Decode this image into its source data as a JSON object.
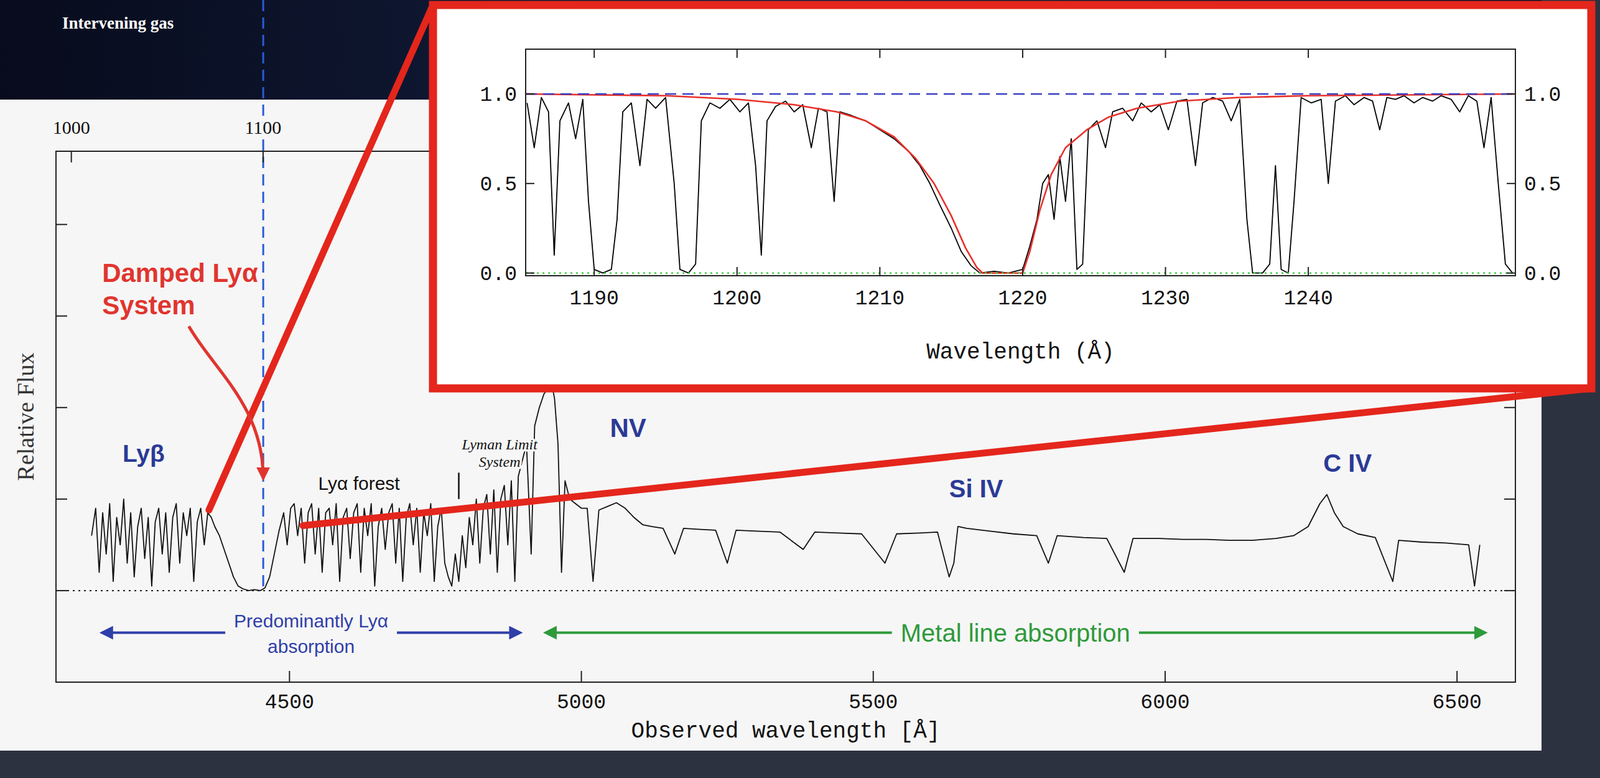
{
  "slide": {
    "label": "Intervening gas"
  },
  "chart_data": [
    {
      "type": "line",
      "x_label": "Observed wavelength [Å]",
      "y_label": "Relative Flux",
      "xlim": [
        4100,
        6600
      ],
      "xticks": [
        4500,
        5000,
        5500,
        6000,
        6500
      ],
      "x2lim": [
        992,
        1753
      ],
      "x2ticks": [
        1000,
        1100
      ],
      "ylim": [
        -1,
        4.8
      ],
      "yticks": [
        0,
        1,
        2,
        3,
        4
      ],
      "tick_labels": "x",
      "grid": false,
      "series": [
        {
          "color": "#111111",
          "x": [
            4161,
            4168,
            4174,
            4180,
            4186,
            4192,
            4198,
            4204,
            4210,
            4216,
            4222,
            4228,
            4234,
            4240,
            4246,
            4252,
            4258,
            4264,
            4270,
            4276,
            4282,
            4288,
            4294,
            4300,
            4306,
            4312,
            4318,
            4324,
            4330,
            4336,
            4342,
            4348,
            4354,
            4360,
            4366,
            4372,
            4380,
            4388,
            4396,
            4404,
            4412,
            4420,
            4430,
            4440,
            4450,
            4458,
            4466,
            4474,
            4482,
            4490,
            4496,
            4502,
            4508,
            4514,
            4520,
            4526,
            4532,
            4538,
            4544,
            4550,
            4556,
            4562,
            4568,
            4574,
            4580,
            4586,
            4592,
            4598,
            4604,
            4610,
            4616,
            4622,
            4628,
            4634,
            4640,
            4646,
            4652,
            4658,
            4664,
            4670,
            4676,
            4682,
            4688,
            4694,
            4700,
            4706,
            4712,
            4718,
            4724,
            4730,
            4736,
            4742,
            4748,
            4754,
            4760,
            4766,
            4772,
            4778,
            4784,
            4790,
            4796,
            4802,
            4808,
            4814,
            4820,
            4826,
            4832,
            4838,
            4844,
            4850,
            4856,
            4862,
            4868,
            4874,
            4880,
            4886,
            4892,
            4898,
            4906,
            4914,
            4920,
            4928,
            4936,
            4942,
            4948,
            4954,
            4960,
            4966,
            4972,
            4980,
            4990,
            5000,
            5010,
            5020,
            5030,
            5045,
            5060,
            5075,
            5090,
            5105,
            5120,
            5140,
            5160,
            5175,
            5200,
            5230,
            5250,
            5265,
            5300,
            5340,
            5380,
            5400,
            5440,
            5480,
            5520,
            5540,
            5580,
            5610,
            5630,
            5638,
            5645,
            5660,
            5700,
            5740,
            5780,
            5800,
            5815,
            5860,
            5900,
            5930,
            5945,
            5990,
            6030,
            6070,
            6110,
            6150,
            6190,
            6220,
            6245,
            6265,
            6277,
            6290,
            6305,
            6330,
            6360,
            6390,
            6400,
            6440,
            6480,
            6520,
            6530,
            6539
          ],
          "values": [
            0.6,
            0.9,
            0.2,
            0.85,
            0.4,
            0.95,
            0.1,
            0.8,
            0.5,
            1.0,
            0.3,
            0.85,
            0.15,
            0.7,
            0.9,
            0.35,
            0.8,
            0.05,
            0.75,
            0.9,
            0.4,
            0.85,
            0.2,
            0.8,
            0.95,
            0.3,
            0.85,
            0.6,
            0.9,
            0.1,
            0.75,
            0.9,
            0.5,
            0.85,
            0.8,
            0.7,
            0.6,
            0.45,
            0.3,
            0.15,
            0.05,
            0.02,
            0,
            0.01,
            0,
            0.03,
            0.15,
            0.4,
            0.65,
            0.85,
            0.5,
            0.9,
            0.95,
            0.6,
            0.9,
            0.3,
            0.85,
            0.95,
            0.4,
            0.9,
            0.2,
            0.85,
            0.9,
            0.5,
            0.95,
            0.1,
            0.8,
            0.9,
            0.35,
            0.85,
            0.95,
            0.2,
            0.9,
            0.6,
            0.95,
            0.05,
            0.7,
            0.9,
            0.45,
            0.85,
            0.95,
            0.3,
            0.9,
            0.1,
            0.8,
            0.95,
            0.5,
            0.9,
            0.2,
            0.85,
            0.6,
            0.95,
            0.1,
            0.7,
            0.9,
            0.3,
            0.15,
            0.05,
            0.4,
            0.1,
            0.6,
            0.25,
            0.8,
            0.5,
            1.0,
            0.3,
            0.9,
            1.05,
            0.4,
            1.1,
            0.2,
            1.0,
            1.15,
            0.5,
            1.2,
            0.1,
            1.25,
            1.4,
            1.6,
            0.4,
            1.8,
            2.0,
            2.15,
            2.2,
            2.3,
            2.1,
            1.6,
            0.2,
            1.2,
            1.0,
            0.95,
            0.9,
            0.9,
            0.1,
            0.88,
            0.92,
            0.96,
            0.9,
            0.8,
            0.72,
            0.7,
            0.68,
            0.4,
            0.68,
            0.67,
            0.66,
            0.3,
            0.66,
            0.65,
            0.64,
            0.45,
            0.64,
            0.63,
            0.62,
            0.3,
            0.62,
            0.63,
            0.64,
            0.15,
            0.3,
            0.7,
            0.68,
            0.65,
            0.62,
            0.6,
            0.3,
            0.6,
            0.58,
            0.57,
            0.2,
            0.57,
            0.57,
            0.56,
            0.56,
            0.55,
            0.55,
            0.57,
            0.6,
            0.7,
            0.95,
            1.05,
            0.85,
            0.7,
            0.62,
            0.58,
            0.1,
            0.55,
            0.53,
            0.52,
            0.5,
            0.05,
            0.5
          ]
        }
      ],
      "reference_lines": [
        {
          "y": 0,
          "color": "#222222",
          "line_style": "dotted"
        },
        {
          "x": 4455,
          "color": "#2a5bd7",
          "line_style": "dashed"
        }
      ],
      "zoom": {
        "x": [
          4362,
          4523
        ],
        "y": [
          0.88,
          0.71
        ]
      },
      "annotations": [
        {
          "text": [
            "Damped Lyα",
            "System"
          ],
          "x": 4179,
          "y": 3.37,
          "color": "#e0352f",
          "target": {
            "x": 4455,
            "y": 1.2
          }
        },
        {
          "text": "Lyβ",
          "x": 4214,
          "y": 1.41,
          "color": "#2b3a96"
        },
        {
          "text": "Lyα forest",
          "x": 4619,
          "y": 1.1,
          "color": "#111111"
        },
        {
          "text": [
            "Lyman Limit",
            "System"
          ],
          "x": 4860,
          "y": 1.54,
          "color": "#111111",
          "target": {
            "x": 4790,
            "y": 1.0
          }
        },
        {
          "text": "NV",
          "x": 5049,
          "y": 1.68,
          "color": "#2b3a96"
        },
        {
          "text": "Si IV",
          "x": 5630,
          "y": 1.02,
          "color": "#2b3a96"
        },
        {
          "text": "C IV",
          "x": 6271,
          "y": 1.3,
          "color": "#2b3a96"
        }
      ],
      "regions": [
        {
          "text": [
            "Predominantly Lyα",
            "absorption"
          ],
          "x": [
            4179,
            4895
          ],
          "y": -0.46,
          "color": "#2f3fa8"
        },
        {
          "text": "Metal line absorption",
          "x": [
            4939,
            6548
          ],
          "y": -0.46,
          "color": "#2e9a3a"
        }
      ]
    },
    {
      "type": "line",
      "x_label": "Wavelength (Å)",
      "xlim": [
        1185.2,
        1254.5
      ],
      "xticks": [
        1190,
        1200,
        1210,
        1220,
        1230,
        1240
      ],
      "ylim": [
        -0.015,
        1.25
      ],
      "yticks": [
        {
          "value": 0,
          "label": "0.0"
        },
        {
          "value": 0.5,
          "label": "0.5"
        },
        {
          "value": 1,
          "label": "1.0"
        }
      ],
      "grid": false,
      "series": [
        {
          "color": "#000000",
          "x": [
            1185.3,
            1185.8,
            1186.3,
            1186.8,
            1187.2,
            1187.6,
            1188.2,
            1188.7,
            1189.2,
            1189.6,
            1190.0,
            1190.6,
            1191.2,
            1191.6,
            1192.0,
            1192.6,
            1193.2,
            1193.7,
            1194.3,
            1195.0,
            1195.6,
            1196.0,
            1196.6,
            1197.1,
            1197.5,
            1198.1,
            1198.8,
            1199.5,
            1200.2,
            1200.8,
            1201.3,
            1201.7,
            1202.1,
            1202.7,
            1203.4,
            1204.0,
            1204.6,
            1205.2,
            1205.7,
            1206.3,
            1206.8,
            1207.2,
            1208.0,
            1209.0,
            1210.0,
            1211.0,
            1212.0,
            1212.8,
            1213.5,
            1214.2,
            1215.0,
            1215.7,
            1216.4,
            1217.0,
            1218.0,
            1219.0,
            1220.0,
            1220.5,
            1221.0,
            1221.4,
            1221.8,
            1222.2,
            1222.6,
            1223.0,
            1223.4,
            1223.8,
            1224.2,
            1224.6,
            1225.2,
            1225.8,
            1226.3,
            1227.0,
            1227.7,
            1228.3,
            1229.0,
            1229.6,
            1230.2,
            1230.8,
            1231.5,
            1232.1,
            1232.6,
            1233.3,
            1234.0,
            1234.6,
            1235.2,
            1235.7,
            1236.1,
            1236.8,
            1237.3,
            1237.7,
            1238.1,
            1238.6,
            1239.0,
            1239.5,
            1240.2,
            1240.9,
            1241.4,
            1241.9,
            1242.6,
            1243.2,
            1243.9,
            1244.5,
            1245.0,
            1245.5,
            1246.1,
            1246.7,
            1247.4,
            1248.0,
            1248.7,
            1249.3,
            1250.0,
            1250.6,
            1251.2,
            1251.8,
            1252.3,
            1252.8,
            1253.3,
            1253.8,
            1254.3
          ],
          "values": [
            0.95,
            0.7,
            0.98,
            0.9,
            0.1,
            0.85,
            0.95,
            0.75,
            0.97,
            0.4,
            0.02,
            0,
            0.02,
            0.3,
            0.9,
            0.95,
            0.6,
            0.97,
            0.92,
            0.98,
            0.5,
            0.02,
            0,
            0.05,
            0.85,
            0.95,
            0.92,
            0.97,
            0.9,
            0.95,
            0.6,
            0.1,
            0.85,
            0.93,
            0.96,
            0.9,
            0.94,
            0.7,
            0.92,
            0.9,
            0.4,
            0.9,
            0.88,
            0.85,
            0.8,
            0.75,
            0.68,
            0.6,
            0.5,
            0.38,
            0.25,
            0.12,
            0.04,
            0,
            0.01,
            0,
            0.02,
            0.15,
            0.3,
            0.5,
            0.55,
            0.3,
            0.65,
            0.4,
            0.75,
            0.02,
            0.05,
            0.8,
            0.85,
            0.7,
            0.9,
            0.92,
            0.85,
            0.95,
            0.9,
            0.94,
            0.8,
            0.96,
            0.97,
            0.6,
            0.95,
            0.98,
            0.96,
            0.85,
            0.97,
            0.3,
            0,
            0,
            0.05,
            0.6,
            0.02,
            0,
            0.4,
            0.98,
            0.95,
            0.97,
            0.5,
            0.96,
            0.99,
            0.94,
            0.98,
            0.96,
            0.8,
            0.98,
            0.97,
            0.99,
            0.95,
            0.98,
            0.96,
            0.99,
            0.97,
            0.9,
            0.99,
            0.96,
            0.7,
            0.98,
            0.5,
            0.05,
            0
          ]
        },
        {
          "color": "#e8302a",
          "x": [
            1185.2,
            1195,
            1200,
            1204,
            1207,
            1209,
            1211,
            1212.5,
            1213.8,
            1215,
            1216,
            1216.8,
            1217.2,
            1220,
            1220.5,
            1221.2,
            1222,
            1223,
            1224.5,
            1226,
            1228,
            1231,
            1235,
            1240,
            1254.5
          ],
          "values": [
            1,
            0.99,
            0.97,
            0.94,
            0.9,
            0.85,
            0.76,
            0.64,
            0.5,
            0.32,
            0.14,
            0.03,
            0,
            0,
            0.12,
            0.35,
            0.55,
            0.7,
            0.8,
            0.87,
            0.92,
            0.96,
            0.98,
            0.99,
            1
          ]
        }
      ],
      "reference_lines": [
        {
          "y": 1,
          "color": "#3b3fc0",
          "line_style": "dashed"
        },
        {
          "y": 0,
          "color": "#44cc44",
          "line_style": "dotted"
        }
      ]
    }
  ]
}
